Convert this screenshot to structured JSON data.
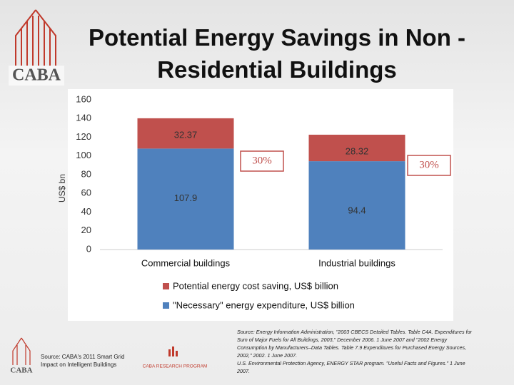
{
  "header": {
    "title": "Potential Energy Savings in Non -Residential Buildings",
    "logo_text": "CABA"
  },
  "chart_data": {
    "type": "stacked_bar",
    "ylabel": "US$ bn",
    "categories": [
      "Commercial buildings",
      "Industrial buildings"
    ],
    "series": [
      {
        "name": "\"Necessary\" energy expenditure, US$ billion",
        "color": "#4f81bd",
        "values": [
          107.9,
          94.4
        ]
      },
      {
        "name": "Potential energy cost saving, US$ billion",
        "color": "#c0504d",
        "values": [
          32.37,
          28.32
        ]
      }
    ],
    "annotations": [
      "30%",
      "30%"
    ],
    "ylim": [
      0,
      160
    ],
    "yticks": [
      0,
      20,
      40,
      60,
      80,
      100,
      120,
      140,
      160
    ],
    "grid": false,
    "legend": "bottom"
  },
  "footer": {
    "left_source": "Source: CABA's 2011 Smart Grid Impact on Intelligent Buildings",
    "program": "CABA RESEARCH PROGRAM",
    "logo_text": "CABA",
    "right_sources": [
      "Source: Energy Information Administration, \"2003 CBECS Detailed Tables. Table C4A. Expenditures for Sum of Major Fuels for All Buildings, 2003,\" December 2006. 1 June 2007 and \"2002 Energy Consumption by Manufacturers–Data Tables. Table 7.9 Expenditures for Purchased Energy Sources, 2002,\" 2002. 1 June 2007.",
      "U.S. Environmental Protection Agency, ENERGY STAR program. \"Useful Facts and Figures.\" 1 June 2007."
    ]
  }
}
